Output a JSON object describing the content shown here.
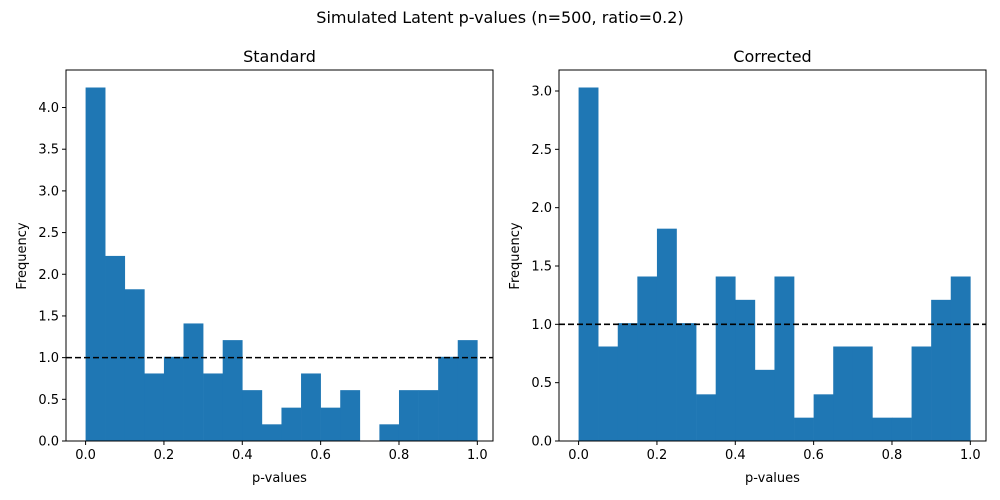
{
  "figure": {
    "suptitle": "Simulated Latent p-values (n=500, ratio=0.2)"
  },
  "chart_data": [
    {
      "type": "bar",
      "title": "Standard",
      "xlabel": "p-values",
      "ylabel": "Frequency",
      "bin_width": 0.05,
      "bin_starts": [
        0.0,
        0.05,
        0.1,
        0.15,
        0.2,
        0.25,
        0.3,
        0.35,
        0.4,
        0.45,
        0.5,
        0.55,
        0.6,
        0.65,
        0.7,
        0.75,
        0.8,
        0.85,
        0.9,
        0.95
      ],
      "values": [
        4.24,
        2.22,
        1.82,
        0.81,
        1.01,
        1.41,
        0.81,
        1.21,
        0.61,
        0.2,
        0.4,
        0.81,
        0.4,
        0.61,
        0.0,
        0.2,
        0.61,
        0.61,
        1.01,
        1.21
      ],
      "xlim": [
        -0.05,
        1.04
      ],
      "ylim": [
        0,
        4.45
      ],
      "xticks": [
        0.0,
        0.2,
        0.4,
        0.6,
        0.8,
        1.0
      ],
      "xtick_labels": [
        "0.0",
        "0.2",
        "0.4",
        "0.6",
        "0.8",
        "1.0"
      ],
      "yticks": [
        0.0,
        0.5,
        1.0,
        1.5,
        2.0,
        2.5,
        3.0,
        3.5,
        4.0
      ],
      "ytick_labels": [
        "0.0",
        "0.5",
        "1.0",
        "1.5",
        "2.0",
        "2.5",
        "3.0",
        "3.5",
        "4.0"
      ],
      "reference_line": {
        "y": 1.0,
        "style": "dashed",
        "color": "#000000"
      },
      "bar_color": "#1f77b4",
      "grid": false
    },
    {
      "type": "bar",
      "title": "Corrected",
      "xlabel": "p-values",
      "ylabel": "Frequency",
      "bin_width": 0.05,
      "bin_starts": [
        0.0,
        0.05,
        0.1,
        0.15,
        0.2,
        0.25,
        0.3,
        0.35,
        0.4,
        0.45,
        0.5,
        0.55,
        0.6,
        0.65,
        0.7,
        0.75,
        0.8,
        0.85,
        0.9,
        0.95
      ],
      "values": [
        3.03,
        0.81,
        1.01,
        1.41,
        1.82,
        1.01,
        0.4,
        1.41,
        1.21,
        0.61,
        1.41,
        0.2,
        0.4,
        0.81,
        0.81,
        0.2,
        0.2,
        0.81,
        1.21,
        1.41
      ],
      "xlim": [
        -0.05,
        1.04
      ],
      "ylim": [
        0,
        3.18
      ],
      "xticks": [
        0.0,
        0.2,
        0.4,
        0.6,
        0.8,
        1.0
      ],
      "xtick_labels": [
        "0.0",
        "0.2",
        "0.4",
        "0.6",
        "0.8",
        "1.0"
      ],
      "yticks": [
        0.0,
        0.5,
        1.0,
        1.5,
        2.0,
        2.5,
        3.0
      ],
      "ytick_labels": [
        "0.0",
        "0.5",
        "1.0",
        "1.5",
        "2.0",
        "2.5",
        "3.0"
      ],
      "reference_line": {
        "y": 1.0,
        "style": "dashed",
        "color": "#000000"
      },
      "bar_color": "#1f77b4",
      "grid": false
    }
  ]
}
